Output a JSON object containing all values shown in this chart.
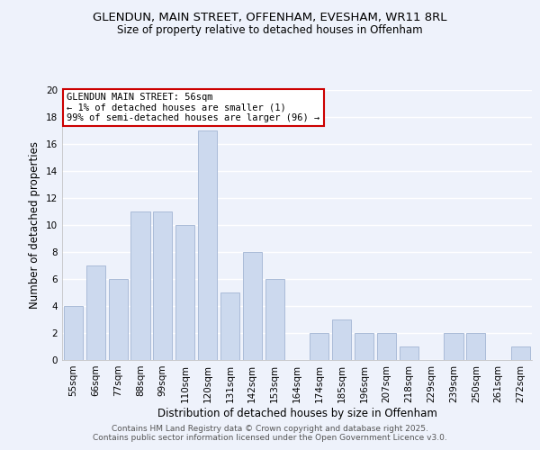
{
  "title": "GLENDUN, MAIN STREET, OFFENHAM, EVESHAM, WR11 8RL",
  "subtitle": "Size of property relative to detached houses in Offenham",
  "xlabel": "Distribution of detached houses by size in Offenham",
  "ylabel": "Number of detached properties",
  "bar_color": "#ccd9ee",
  "bar_edge_color": "#aabbd8",
  "background_color": "#eef2fb",
  "grid_color": "#ffffff",
  "categories": [
    "55sqm",
    "66sqm",
    "77sqm",
    "88sqm",
    "99sqm",
    "110sqm",
    "120sqm",
    "131sqm",
    "142sqm",
    "153sqm",
    "164sqm",
    "174sqm",
    "185sqm",
    "196sqm",
    "207sqm",
    "218sqm",
    "229sqm",
    "239sqm",
    "250sqm",
    "261sqm",
    "272sqm"
  ],
  "values": [
    4,
    7,
    6,
    11,
    11,
    10,
    17,
    5,
    8,
    6,
    0,
    2,
    3,
    2,
    2,
    1,
    0,
    2,
    2,
    0,
    1
  ],
  "ylim": [
    0,
    20
  ],
  "yticks": [
    0,
    2,
    4,
    6,
    8,
    10,
    12,
    14,
    16,
    18,
    20
  ],
  "annotation_line1": "GLENDUN MAIN STREET: 56sqm",
  "annotation_line2": "← 1% of detached houses are smaller (1)",
  "annotation_line3": "99% of semi-detached houses are larger (96) →",
  "annotation_box_color": "#ffffff",
  "annotation_box_edge_color": "#cc0000",
  "footnote1": "Contains HM Land Registry data © Crown copyright and database right 2025.",
  "footnote2": "Contains public sector information licensed under the Open Government Licence v3.0.",
  "title_fontsize": 9.5,
  "subtitle_fontsize": 8.5,
  "axis_label_fontsize": 8.5,
  "tick_fontsize": 7.5,
  "annotation_fontsize": 7.5,
  "footnote_fontsize": 6.5
}
